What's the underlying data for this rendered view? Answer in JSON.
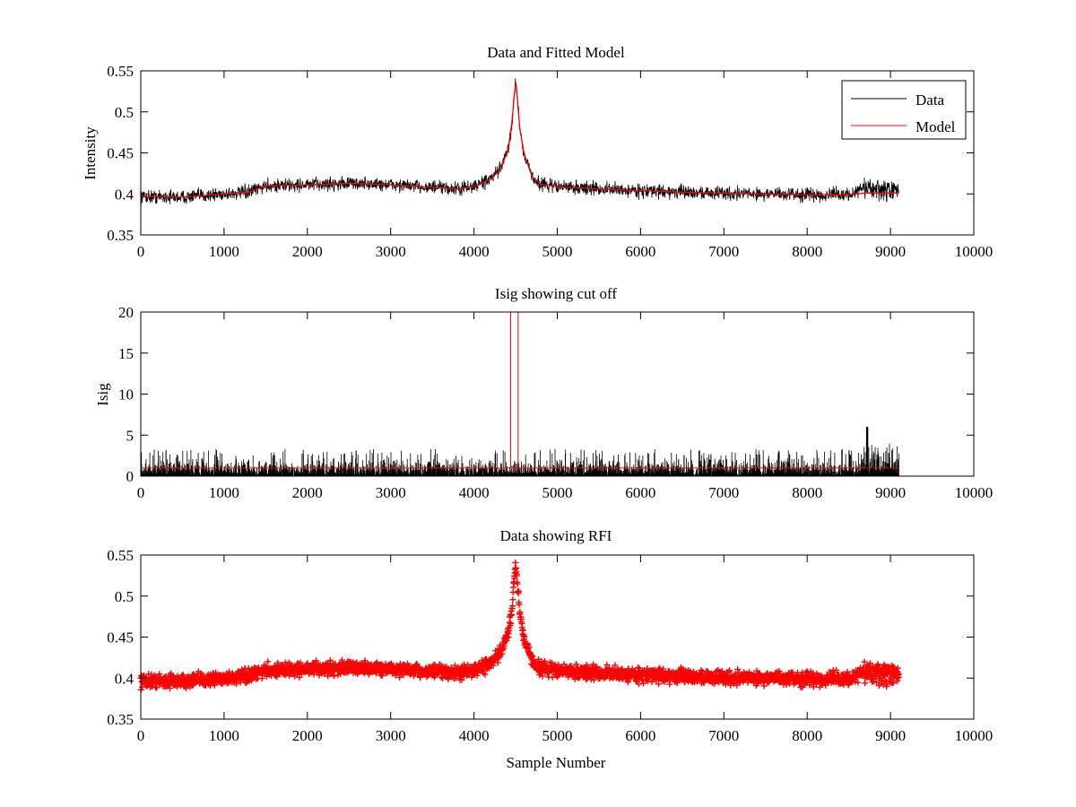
{
  "chart_data": [
    {
      "type": "line",
      "title": "Data and Fitted Model",
      "xlabel": "",
      "ylabel": "Intensity",
      "xlim": [
        0,
        10000
      ],
      "ylim": [
        0.35,
        0.55
      ],
      "xticks": [
        0,
        1000,
        2000,
        3000,
        4000,
        5000,
        6000,
        7000,
        8000,
        9000,
        10000
      ],
      "yticks": [
        0.35,
        0.4,
        0.45,
        0.5,
        0.55
      ],
      "xtick_labels": [
        "0",
        "1000",
        "2000",
        "3000",
        "4000",
        "5000",
        "6000",
        "7000",
        "8000",
        "9000",
        "10000"
      ],
      "ytick_labels": [
        "0.35",
        "0.4",
        "0.45",
        "0.5",
        "0.55"
      ],
      "grid": false,
      "legend": "top-right",
      "noise_amplitude": 0.007,
      "series": [
        {
          "name": "Data",
          "color": "#000000",
          "x": [
            0,
            500,
            1000,
            1300,
            1500,
            2000,
            2500,
            3000,
            3500,
            3800,
            4000,
            4200,
            4300,
            4400,
            4450,
            4500,
            4550,
            4600,
            4700,
            4800,
            5000,
            5500,
            6000,
            6500,
            7000,
            7500,
            8000,
            8500,
            8700,
            8800,
            9100
          ],
          "y": [
            0.397,
            0.396,
            0.4,
            0.402,
            0.41,
            0.411,
            0.413,
            0.411,
            0.408,
            0.406,
            0.409,
            0.418,
            0.428,
            0.45,
            0.48,
            0.541,
            0.48,
            0.45,
            0.42,
            0.412,
            0.409,
            0.406,
            0.404,
            0.402,
            0.401,
            0.4,
            0.399,
            0.399,
            0.408,
            0.404,
            0.404
          ]
        },
        {
          "name": "Model",
          "color": "#ff0000",
          "x": [
            0,
            500,
            1000,
            1300,
            1500,
            2000,
            2500,
            3000,
            3500,
            3800,
            4000,
            4200,
            4300,
            4400,
            4450,
            4500,
            4550,
            4600,
            4700,
            4800,
            5000,
            5500,
            6000,
            6500,
            7000,
            7500,
            8000,
            8500,
            8700,
            8800,
            9100
          ],
          "y": [
            0.397,
            0.396,
            0.4,
            0.402,
            0.41,
            0.411,
            0.413,
            0.411,
            0.408,
            0.406,
            0.409,
            0.418,
            0.428,
            0.45,
            0.48,
            0.541,
            0.48,
            0.45,
            0.42,
            0.412,
            0.409,
            0.406,
            0.404,
            0.402,
            0.401,
            0.4,
            0.399,
            0.399,
            0.401,
            0.401,
            0.401
          ]
        }
      ]
    },
    {
      "type": "line",
      "title": "Isig showing cut off",
      "xlabel": "",
      "ylabel": "Isig",
      "xlim": [
        0,
        10000
      ],
      "ylim": [
        0,
        20
      ],
      "xticks": [
        0,
        1000,
        2000,
        3000,
        4000,
        5000,
        6000,
        7000,
        8000,
        9000,
        10000
      ],
      "yticks": [
        0,
        5,
        10,
        15,
        20
      ],
      "xtick_labels": [
        "0",
        "1000",
        "2000",
        "3000",
        "4000",
        "5000",
        "6000",
        "7000",
        "8000",
        "9000",
        "10000"
      ],
      "ytick_labels": [
        "0",
        "5",
        "10",
        "15",
        "20"
      ],
      "grid": false,
      "isig_typical_max": 3.3,
      "isig_peak": {
        "x": 8720,
        "y": 6
      },
      "cutoff": {
        "color": "#ff0000",
        "level": 1,
        "spikes_x": [
          4440,
          4530
        ],
        "spike_top": 20
      },
      "series": [
        {
          "color": "#000000",
          "x_range": [
            0,
            9100
          ]
        }
      ]
    },
    {
      "type": "scatter",
      "title": "Data showing RFI",
      "xlabel": "Sample Number",
      "ylabel": "",
      "xlim": [
        0,
        10000
      ],
      "ylim": [
        0.35,
        0.55
      ],
      "xticks": [
        0,
        1000,
        2000,
        3000,
        4000,
        5000,
        6000,
        7000,
        8000,
        9000,
        10000
      ],
      "yticks": [
        0.35,
        0.4,
        0.45,
        0.5,
        0.55
      ],
      "xtick_labels": [
        "0",
        "1000",
        "2000",
        "3000",
        "4000",
        "5000",
        "6000",
        "7000",
        "8000",
        "9000",
        "10000"
      ],
      "ytick_labels": [
        "0.35",
        "0.4",
        "0.45",
        "0.5",
        "0.55"
      ],
      "grid": false,
      "series": [
        {
          "color": "#ff0000",
          "marker": "+",
          "same_as": "Data"
        }
      ]
    }
  ]
}
